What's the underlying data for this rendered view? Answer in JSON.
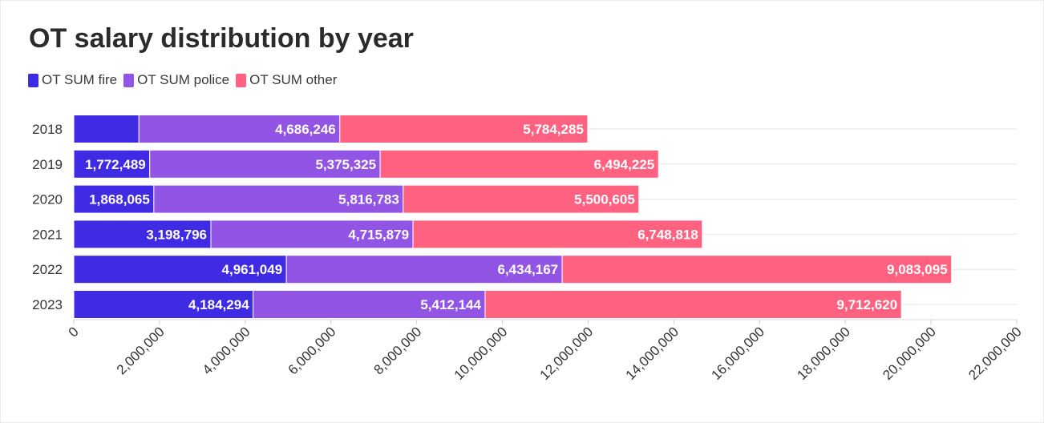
{
  "chart_data": {
    "type": "bar",
    "orientation": "horizontal",
    "stacked": true,
    "title": "OT salary distribution by year",
    "categories": [
      "2018",
      "2019",
      "2020",
      "2021",
      "2022",
      "2023"
    ],
    "series": [
      {
        "name": "OT SUM fire",
        "color": "#3f2be3",
        "values": [
          1520000,
          1772489,
          1868065,
          3198796,
          4961049,
          4184294
        ],
        "labels": [
          "",
          "1,772,489",
          "1,868,065",
          "3,198,796",
          "4,961,049",
          "4,184,294"
        ]
      },
      {
        "name": "OT SUM police",
        "color": "#9254e4",
        "values": [
          4686246,
          5375325,
          5816783,
          4715879,
          6434167,
          5412144
        ],
        "labels": [
          "4,686,246",
          "5,375,325",
          "5,816,783",
          "4,715,879",
          "6,434,167",
          "5,412,144"
        ]
      },
      {
        "name": "OT SUM other",
        "color": "#ff6281",
        "values": [
          5784285,
          6494225,
          5500605,
          6748818,
          9083095,
          9712620
        ],
        "labels": [
          "5,784,285",
          "6,494,225",
          "5,500,605",
          "6,748,818",
          "9,083,095",
          "9,712,620"
        ]
      }
    ],
    "xlim": [
      0,
      22000000
    ],
    "x_ticks": [
      "0",
      "2,000,000",
      "4,000,000",
      "6,000,000",
      "8,000,000",
      "10,000,000",
      "12,000,000",
      "14,000,000",
      "16,000,000",
      "18,000,000",
      "20,000,000",
      "22,000,000"
    ],
    "grid": true,
    "legend_position": "top-left"
  }
}
